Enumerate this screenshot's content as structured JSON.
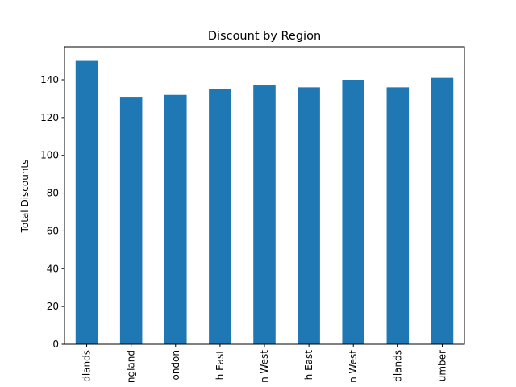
{
  "chart_data": {
    "type": "bar",
    "title": "Discount by Region",
    "xlabel": "",
    "ylabel": "Total Discounts",
    "categories": [
      "dlands",
      "ngland",
      "ondon",
      "h East",
      "n West",
      "h East",
      "n West",
      "dlands",
      "umber"
    ],
    "values": [
      150,
      131,
      132,
      135,
      137,
      136,
      140,
      136,
      141
    ],
    "ylim": [
      0,
      157.5
    ],
    "yticks": [
      0,
      20,
      40,
      60,
      80,
      100,
      120,
      140
    ],
    "ytick_labels": [
      "0",
      "20",
      "40",
      "60",
      "80",
      "100",
      "120",
      "140"
    ],
    "bar_color": "#1f77b4",
    "grid": false,
    "legend": "none"
  }
}
